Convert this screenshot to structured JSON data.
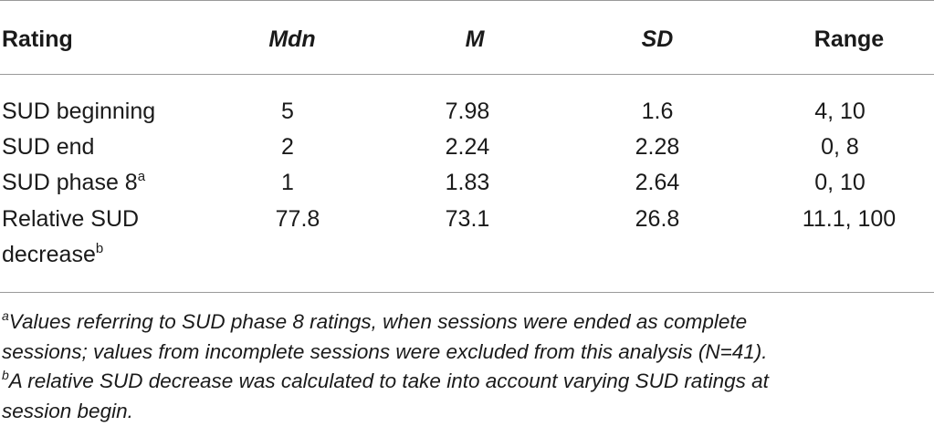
{
  "headers": {
    "rating": "Rating",
    "mdn": "Mdn",
    "m": "M",
    "sd": "SD",
    "range": "Range"
  },
  "rows": [
    {
      "rating": "SUD beginning",
      "sup": "",
      "mdn": "5",
      "m": "7.98",
      "sd": "1.6",
      "range": "4, 10"
    },
    {
      "rating": "SUD end",
      "sup": "",
      "mdn": "2",
      "m": "2.24",
      "sd": "2.28",
      "range": "0, 8"
    },
    {
      "rating": "SUD phase 8",
      "sup": "a",
      "mdn": "1",
      "m": "1.83",
      "sd": "2.64",
      "range": "0, 10"
    },
    {
      "rating": "Relative SUD",
      "rating_line2": "decrease",
      "sup": "b",
      "mdn": "77.8",
      "m": "73.1",
      "sd": "26.8",
      "range": "11.1, 100"
    }
  ],
  "footnotes": [
    {
      "mark": "a",
      "line1": "Values referring to SUD phase 8 ratings, when sessions were ended as complete",
      "line2": "sessions; values from incomplete sessions were excluded from this analysis (N=41)."
    },
    {
      "mark": "b",
      "line1": "A relative SUD decrease was calculated to take into account varying SUD ratings at",
      "line2": "session begin."
    }
  ]
}
